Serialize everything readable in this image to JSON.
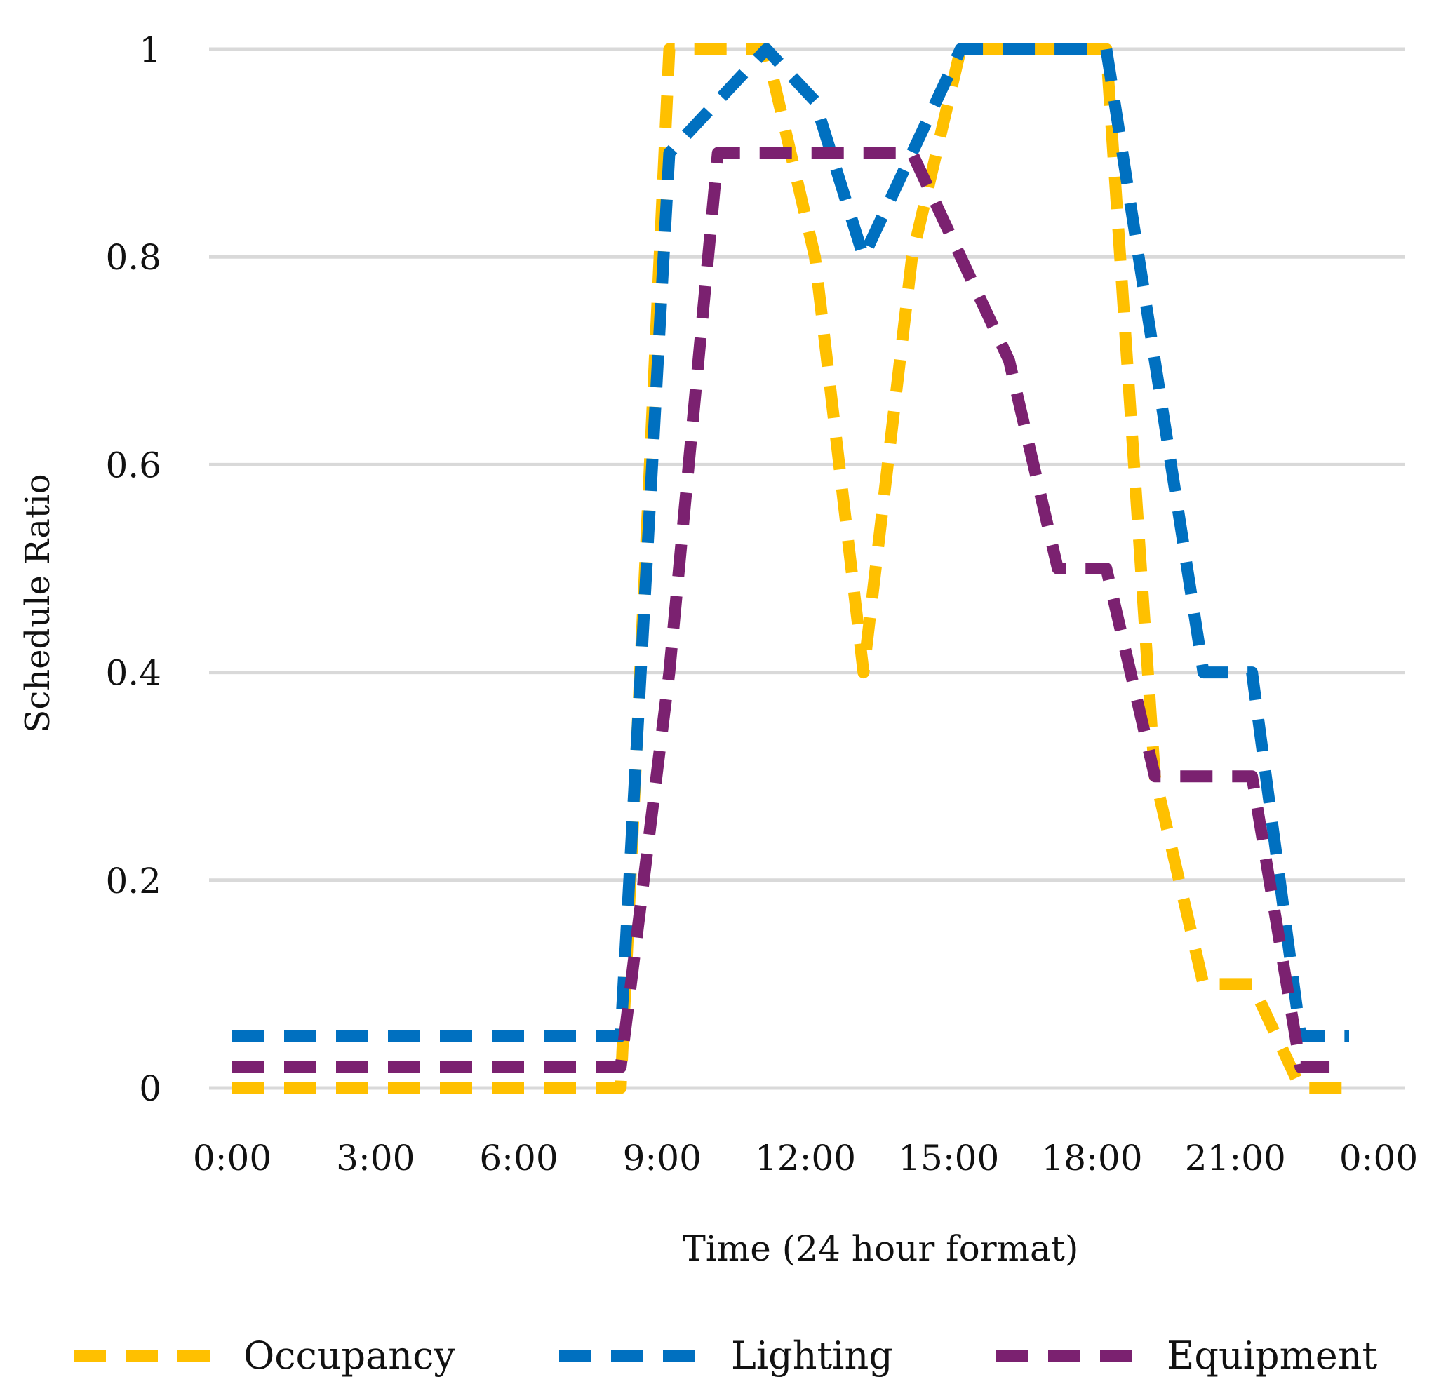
{
  "chart_data": {
    "type": "line",
    "title": "",
    "xlabel": "Time (24 hour format)",
    "ylabel": "Schedule Ratio",
    "ylim": [
      0,
      1
    ],
    "xlim": [
      0,
      24
    ],
    "y_ticks": [
      "0",
      "0.2",
      "0.4",
      "0.6",
      "0.8",
      "1"
    ],
    "y_tick_values": [
      0,
      0.2,
      0.4,
      0.6,
      0.8,
      1
    ],
    "x_ticks": [
      "0:00",
      "3:00",
      "6:00",
      "9:00",
      "12:00",
      "15:00",
      "18:00",
      "21:00",
      "0:00"
    ],
    "x_tick_values": [
      0,
      3,
      6,
      9,
      12,
      15,
      18,
      21,
      24
    ],
    "grid": "horizontal",
    "legend_position": "bottom",
    "x": [
      0,
      1,
      2,
      3,
      4,
      5,
      6,
      7,
      8,
      9,
      10,
      11,
      12,
      13,
      14,
      15,
      16,
      17,
      18,
      19,
      20,
      21,
      22,
      23
    ],
    "series": [
      {
        "name": "Occupancy",
        "color": "#FFC000",
        "values": [
          0,
          0,
          0,
          0,
          0,
          0,
          0,
          0,
          0,
          1,
          1,
          1,
          0.8,
          0.4,
          0.8,
          1,
          1,
          1,
          1,
          0.3,
          0.1,
          0.1,
          0,
          0
        ]
      },
      {
        "name": "Lighting",
        "color": "#0070C0",
        "values": [
          0.05,
          0.05,
          0.05,
          0.05,
          0.05,
          0.05,
          0.05,
          0.05,
          0.05,
          0.9,
          0.95,
          1,
          0.95,
          0.8,
          0.9,
          1,
          1,
          1,
          1,
          0.7,
          0.4,
          0.4,
          0.05,
          0.05
        ]
      },
      {
        "name": "Equipment",
        "color": "#7B2170",
        "values": [
          0.02,
          0.02,
          0.02,
          0.02,
          0.02,
          0.02,
          0.02,
          0.02,
          0.02,
          0.4,
          0.9,
          0.9,
          0.9,
          0.9,
          0.9,
          0.8,
          0.7,
          0.5,
          0.5,
          0.3,
          0.3,
          0.3,
          0.02,
          0.02
        ]
      }
    ]
  }
}
